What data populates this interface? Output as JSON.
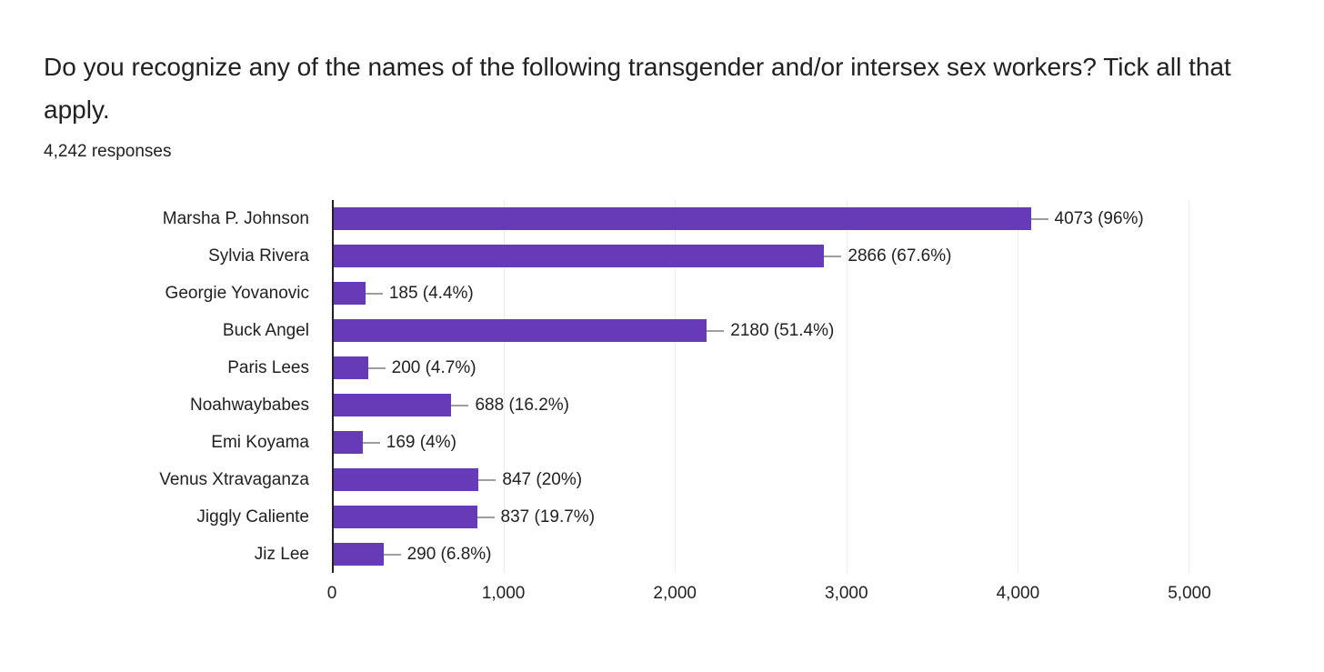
{
  "header": {
    "title": "Do you recognize any of the names of the following transgender and/or intersex sex workers? Tick all that apply.",
    "responses": "4,242 responses"
  },
  "chart_data": {
    "type": "bar",
    "orientation": "horizontal",
    "title": "Do you recognize any of the names of the following transgender and/or intersex sex workers? Tick all that apply.",
    "subtitle": "4,242 responses",
    "categories": [
      "Marsha P. Johnson",
      "Sylvia Rivera",
      "Georgie Yovanovic",
      "Buck Angel",
      "Paris Lees",
      "Noahwaybabes",
      "Emi Koyama",
      "Venus Xtravaganza",
      "Jiggly Caliente",
      "Jiz Lee"
    ],
    "values": [
      4073,
      2866,
      185,
      2180,
      200,
      688,
      169,
      847,
      837,
      290
    ],
    "percentages": [
      "96%",
      "67.6%",
      "4.4%",
      "51.4%",
      "4.7%",
      "16.2%",
      "4%",
      "20%",
      "19.7%",
      "6.8%"
    ],
    "value_labels": [
      "4073 (96%)",
      "2866 (67.6%)",
      "185 (4.4%)",
      "2180 (51.4%)",
      "200 (4.7%)",
      "688 (16.2%)",
      "169 (4%)",
      "847 (20%)",
      "837 (19.7%)",
      "290 (6.8%)"
    ],
    "x_ticks": [
      "0",
      "1,000",
      "2,000",
      "3,000",
      "4,000",
      "5,000"
    ],
    "xlim": [
      0,
      5000
    ],
    "grid": true,
    "legend": "none",
    "colors": {
      "bar": "#673ab7",
      "gridline": "#ececec",
      "axis_line": "#212121",
      "callout_line": "#9e9e9e",
      "text": "#212121"
    }
  }
}
